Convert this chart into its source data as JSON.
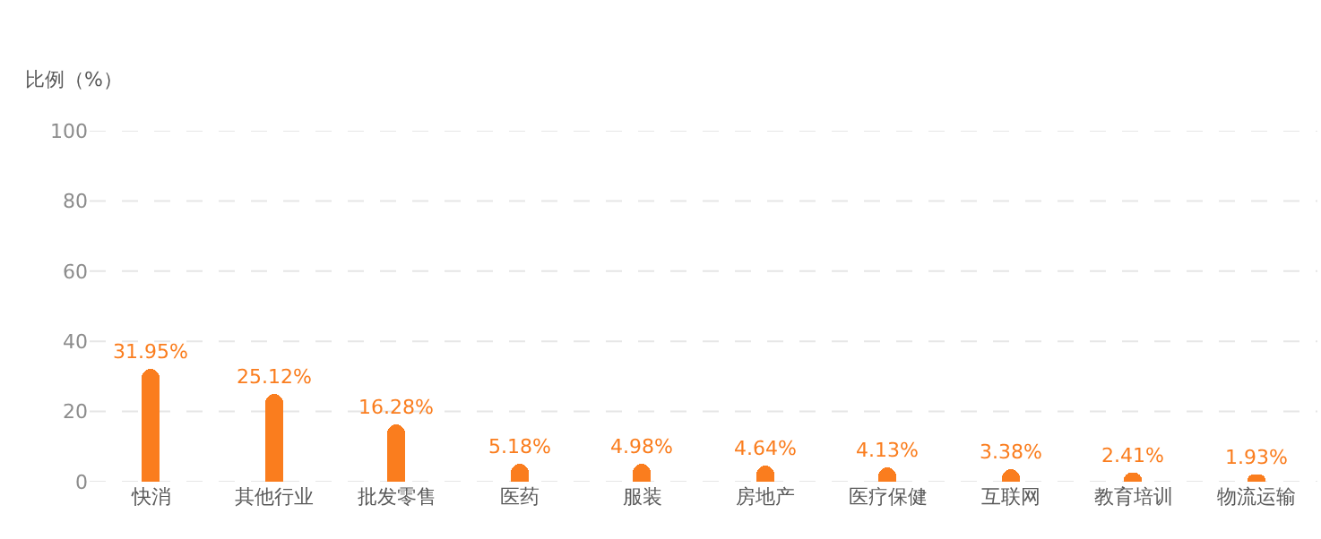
{
  "chart_data": {
    "type": "bar",
    "ylabel": "比例（%）",
    "categories": [
      "快消",
      "其他行业",
      "批发零售",
      "医药",
      "服装",
      "房地产",
      "医疗保健",
      "互联网",
      "教育培训",
      "物流运输"
    ],
    "series": [
      {
        "color": "#fa7d1e",
        "values": [
          31.95,
          25.12,
          16.28,
          5.18,
          4.98,
          4.64,
          4.13,
          3.38,
          2.41,
          1.93
        ],
        "value_labels": [
          "31.95%",
          "25.12%",
          "16.28%",
          "5.18%",
          "4.98%",
          "4.64%",
          "4.13%",
          "3.38%",
          "2.41%",
          "1.93%"
        ]
      }
    ],
    "ylim": [
      0,
      100
    ],
    "yticks": [
      0,
      20,
      40,
      60,
      80,
      100
    ],
    "grid": "y"
  }
}
